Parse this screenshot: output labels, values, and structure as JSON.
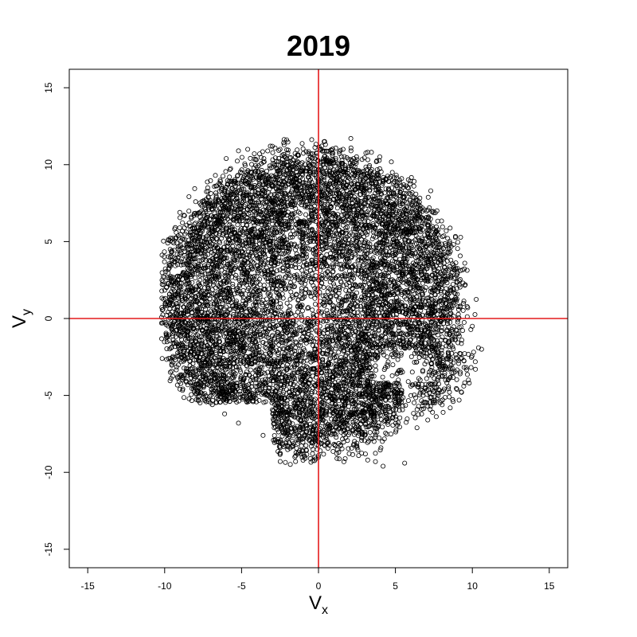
{
  "chart_data": {
    "type": "scatter",
    "title": "2019",
    "xlabel": {
      "main": "V",
      "sub": "x"
    },
    "ylabel": {
      "main": "V",
      "sub": "y"
    },
    "xlim": [
      -16.2,
      16.2
    ],
    "ylim": [
      -16.2,
      16.2
    ],
    "xticks": [
      -15,
      -10,
      -5,
      0,
      5,
      10,
      15
    ],
    "yticks": [
      -15,
      -10,
      -5,
      0,
      5,
      10,
      15
    ],
    "grid": false,
    "legend": "none",
    "reference_lines": {
      "x": 0,
      "y": 0,
      "color": "#e41a1c"
    },
    "marker": {
      "shape": "open-circle",
      "color": "#000000"
    },
    "cloud": {
      "center": [
        -0.6,
        1.0
      ],
      "x_range": [
        -10.2,
        10.6
      ],
      "y_range": [
        -9.5,
        11.7
      ],
      "approx_points": 9000
    },
    "points_outliers": [
      [
        -10.2,
        -0.3
      ],
      [
        -9.9,
        -0.4
      ],
      [
        -9.7,
        0.9
      ],
      [
        -9.5,
        -0.8
      ],
      [
        -9.4,
        4.9
      ],
      [
        -9.2,
        4.9
      ],
      [
        -9.0,
        2.3
      ],
      [
        -8.8,
        3.0
      ],
      [
        -9.1,
        -1.9
      ],
      [
        -8.7,
        -2.5
      ],
      [
        -8.3,
        5.8
      ],
      [
        -8.0,
        6.2
      ],
      [
        -7.7,
        7.5
      ],
      [
        -7.2,
        8.5
      ],
      [
        -6.7,
        9.3
      ],
      [
        -6.0,
        10.4
      ],
      [
        -5.2,
        10.9
      ],
      [
        -4.6,
        11.0
      ],
      [
        -3.0,
        11.2
      ],
      [
        -2.5,
        11.0
      ],
      [
        -1.3,
        10.6
      ],
      [
        0.3,
        10.9
      ],
      [
        0.4,
        11.5
      ],
      [
        1.6,
        11.0
      ],
      [
        2.1,
        11.7
      ],
      [
        3.2,
        10.8
      ],
      [
        4.8,
        9.5
      ],
      [
        6.2,
        8.6
      ],
      [
        7.3,
        8.3
      ],
      [
        7.7,
        7.0
      ],
      [
        8.3,
        5.7
      ],
      [
        8.8,
        3.3
      ],
      [
        9.0,
        2.4
      ],
      [
        9.7,
        0.7
      ],
      [
        10.0,
        -0.5
      ],
      [
        10.4,
        -1.9
      ],
      [
        10.6,
        -2.0
      ],
      [
        10.2,
        -3.3
      ],
      [
        9.8,
        -4.2
      ],
      [
        9.3,
        -4.8
      ],
      [
        8.5,
        -5.1
      ],
      [
        8.1,
        -6.1
      ],
      [
        7.1,
        -6.6
      ],
      [
        6.4,
        -7.1
      ],
      [
        5.6,
        -9.4
      ],
      [
        4.2,
        -9.6
      ],
      [
        3.2,
        -9.2
      ],
      [
        2.5,
        -8.3
      ],
      [
        1.2,
        -9.1
      ],
      [
        0.0,
        -8.9
      ],
      [
        -1.3,
        -8.7
      ],
      [
        -2.6,
        -8.0
      ],
      [
        -3.6,
        -7.6
      ],
      [
        -5.2,
        -6.8
      ],
      [
        -6.1,
        -6.2
      ],
      [
        -6.9,
        -5.6
      ],
      [
        -7.8,
        -4.3
      ],
      [
        -8.3,
        -3.5
      ],
      [
        4.5,
        -3.1
      ],
      [
        5.1,
        -3.6
      ],
      [
        6.0,
        -4.4
      ],
      [
        6.8,
        -5.0
      ],
      [
        3.7,
        -9.3
      ],
      [
        -7.1,
        1.5
      ]
    ]
  }
}
